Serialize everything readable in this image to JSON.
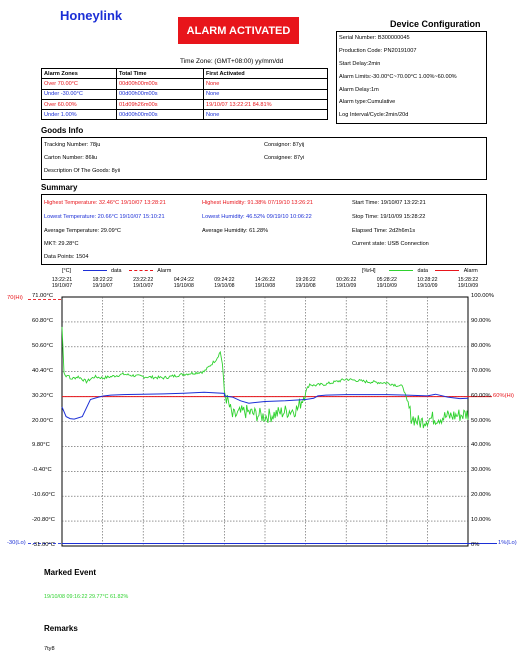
{
  "brand": "Honeylink",
  "alarm_banner": "ALARM ACTIVATED",
  "device": {
    "title": "Device Configuration",
    "lines": [
      "Serial Number: B300000045",
      "Production Code: PN20191007",
      "Start Delay:2min",
      "Alarm Limits:-30.00°C~70.00°C  1.00%~60.00%",
      "Alarm Delay:1m",
      "Alarm type:Cumulative",
      "Log Interval/Cycle:2min/20d"
    ]
  },
  "timezone": "Time Zone: (GMT+08:00) yy/mm/dd",
  "alarm_zones": {
    "headers": [
      "Alarm Zones",
      "Total Time",
      "First Activated"
    ],
    "rows": [
      {
        "zone": "Over 70.00°C",
        "total": "00d00h00m00s",
        "first": "None",
        "zone_color": "red",
        "total_color": "red",
        "first_color": "red"
      },
      {
        "zone": "Under -30.00°C",
        "total": "00d00h00m00s",
        "first": "None",
        "zone_color": "blue",
        "total_color": "blue",
        "first_color": "blue"
      },
      {
        "zone": "Over 60.00%",
        "total": "01d09h26m00s",
        "first": "19/10/07 13:22:21 84.81%",
        "zone_color": "red",
        "total_color": "red",
        "first_color": "red"
      },
      {
        "zone": "Under 1.00%",
        "total": "00d00h00m00s",
        "first": "None",
        "zone_color": "blue",
        "total_color": "blue",
        "first_color": "blue"
      }
    ]
  },
  "goods": {
    "title": "Goods Info",
    "tracking": "Tracking Number: 78ju",
    "consignor": "Consignor: 87yij",
    "carton": "Carton Number: 86liu",
    "consignee": "Consignee: 87yi",
    "description": "Description Of The Goods: 8yii"
  },
  "summary": {
    "title": "Summary",
    "highest_temp": "Highest Temperature: 32.46°C  19/10/07 13:28:21",
    "highest_hum": "Highest Humidity: 91.38%  07/19/10 13:26:21",
    "start_time": "Start Time: 19/10/07 13:22:21",
    "lowest_temp": "Lowest Temperature: 20.66°C  19/10/07 15:10:21",
    "lowest_hum": "Lowest Humidity: 46.52%  09/19/10 10:06:22",
    "stop_time": "Stop Time: 19/10/09 15:28:22",
    "avg_temp": "Average Temperature: 29.09°C",
    "avg_hum": "Average Humidity: 61.28%",
    "elapsed": "Elapsed Time: 2d2h6m1s",
    "mkt": "MKT: 29.28°C",
    "state": "Current state: USB Connection",
    "points": "Data Points: 1504"
  },
  "chart_data": {
    "type": "line",
    "legend_left": {
      "unit": "[°C]",
      "data_label": "data",
      "alarm_label": "Alarm"
    },
    "legend_right": {
      "unit": "[%rH]",
      "data_label": "data",
      "alarm_label": "Alarm"
    },
    "x_ticks": [
      [
        "13:22:21",
        "19/10/07"
      ],
      [
        "18:22:22",
        "19/10/07"
      ],
      [
        "23:22:22",
        "19/10/07"
      ],
      [
        "04:24:22",
        "19/10/08"
      ],
      [
        "09:24:22",
        "19/10/08"
      ],
      [
        "14:26:22",
        "19/10/08"
      ],
      [
        "19:26:22",
        "19/10/08"
      ],
      [
        "00:26:22",
        "19/10/09"
      ],
      [
        "05:28:22",
        "19/10/09"
      ],
      [
        "10:28:22",
        "19/10/09"
      ],
      [
        "15:28:22",
        "19/10/09"
      ]
    ],
    "y_left_ticks": [
      "71.00°C",
      "60.80°C",
      "50.60°C",
      "40.40°C",
      "30.20°C",
      "20.00°C",
      "9.80°C",
      "-0.40°C",
      "-10.60°C",
      "-20.80°C",
      "-31.00°C"
    ],
    "y_right_ticks": [
      "100.00%",
      "90.00%",
      "80.00%",
      "70.00%",
      "60.00%",
      "50.00%",
      "40.00%",
      "30.00%",
      "20.00%",
      "10.00%",
      "0%"
    ],
    "y_left_range": [
      -31,
      71
    ],
    "y_right_range": [
      0,
      100
    ],
    "upper_limit_label": "70(Hi)",
    "lower_limit_label": "-30(Lo)",
    "hum_upper_label": "60%(Hi)",
    "hum_lower_label": "1%(Lo)",
    "temp_high_limit": 70,
    "temp_low_limit": -30,
    "hum_high_limit": 60,
    "hum_low_limit": 1,
    "temperature_series": {
      "name": "data",
      "color": "#1c2fd6",
      "x_frac": [
        0,
        0.01,
        0.02,
        0.03,
        0.05,
        0.07,
        0.09,
        0.1,
        0.12,
        0.15,
        0.2,
        0.25,
        0.3,
        0.35,
        0.4,
        0.4,
        0.42,
        0.44,
        0.46,
        0.5,
        0.55,
        0.6,
        0.62,
        0.63,
        0.65,
        0.7,
        0.75,
        0.8,
        0.85,
        0.9,
        0.92,
        0.95,
        0.98,
        1
      ],
      "values": [
        26,
        22,
        21.2,
        21,
        22,
        29,
        30,
        30.4,
        30.8,
        31,
        31.2,
        31.3,
        31.6,
        32,
        31.5,
        30.5,
        30,
        28.5,
        27.5,
        28.2,
        28.5,
        29,
        29.5,
        30.5,
        30.8,
        31,
        31,
        31,
        30.8,
        30.5,
        31.2,
        30,
        29.4,
        29.5
      ]
    },
    "humidity_series": {
      "name": "data",
      "color": "#2fd22f",
      "x_frac": [
        0,
        0.005,
        0.01,
        0.015,
        0.02,
        0.04,
        0.06,
        0.08,
        0.1,
        0.12,
        0.15,
        0.2,
        0.25,
        0.3,
        0.35,
        0.38,
        0.39,
        0.395,
        0.4,
        0.42,
        0.45,
        0.5,
        0.55,
        0.58,
        0.6,
        0.61,
        0.62,
        0.65,
        0.7,
        0.75,
        0.8,
        0.84,
        0.85,
        0.86,
        0.88,
        0.9,
        0.95,
        1
      ],
      "values": [
        88,
        70,
        68,
        69,
        67,
        68,
        66,
        68,
        67.5,
        68,
        69,
        68,
        67.5,
        69,
        70,
        75,
        78,
        73,
        62,
        52,
        54,
        52,
        54,
        55,
        62,
        65,
        64.5,
        65,
        67,
        66,
        65.5,
        64,
        58,
        52,
        49.5,
        51,
        52,
        53
      ]
    }
  },
  "marked_event": {
    "title": "Marked Event",
    "text": "19/10/08 09:16:22  29.77°C 61.82%"
  },
  "remarks": {
    "title": "Remarks",
    "text": "7ty8"
  },
  "colors": {
    "red": "#e8151b",
    "blue": "#1c2fd6",
    "green": "#2fd22f"
  }
}
